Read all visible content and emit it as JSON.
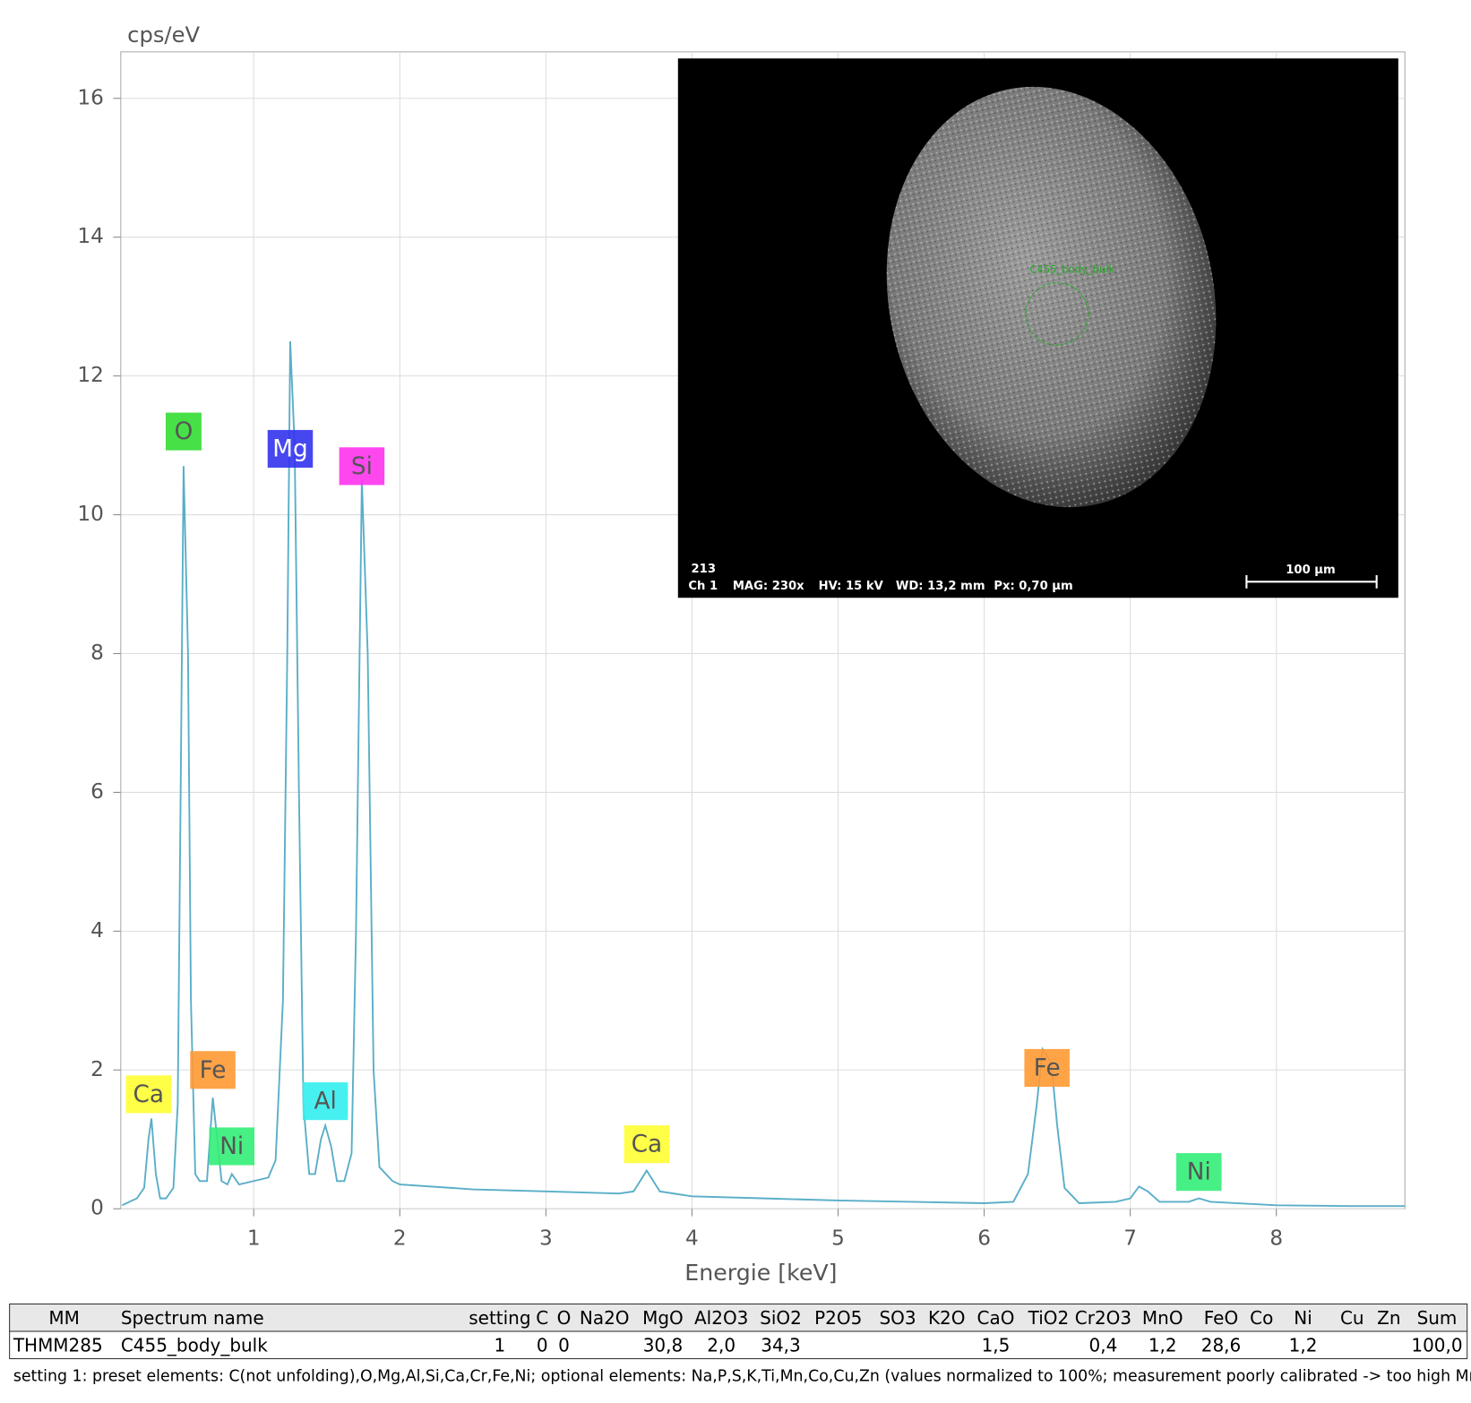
{
  "chart_data": {
    "type": "line",
    "ylabel": "cps/eV",
    "xlabel": "Energie [keV]",
    "x": [
      0.1,
      0.15,
      0.2,
      0.25,
      0.28,
      0.3,
      0.33,
      0.36,
      0.4,
      0.45,
      0.48,
      0.5,
      0.52,
      0.55,
      0.57,
      0.6,
      0.63,
      0.68,
      0.7,
      0.72,
      0.75,
      0.78,
      0.82,
      0.85,
      0.9,
      1.0,
      1.1,
      1.15,
      1.2,
      1.23,
      1.25,
      1.28,
      1.31,
      1.34,
      1.38,
      1.42,
      1.46,
      1.49,
      1.53,
      1.57,
      1.62,
      1.67,
      1.7,
      1.74,
      1.78,
      1.82,
      1.86,
      1.95,
      2.0,
      2.5,
      3.0,
      3.5,
      3.6,
      3.69,
      3.78,
      4.0,
      4.5,
      5.0,
      5.5,
      6.0,
      6.2,
      6.3,
      6.36,
      6.4,
      6.46,
      6.5,
      6.55,
      6.65,
      6.9,
      7.0,
      7.06,
      7.12,
      7.2,
      7.4,
      7.47,
      7.55,
      8.0,
      8.5,
      8.88
    ],
    "values": [
      0.05,
      0.1,
      0.15,
      0.3,
      1.0,
      1.3,
      0.5,
      0.15,
      0.15,
      0.3,
      1.5,
      6,
      10.7,
      8,
      3,
      0.5,
      0.4,
      0.4,
      1.0,
      1.6,
      1.0,
      0.4,
      0.35,
      0.5,
      0.35,
      0.4,
      0.45,
      0.7,
      3,
      8,
      12.5,
      11,
      6,
      1.5,
      0.5,
      0.5,
      1.0,
      1.2,
      0.9,
      0.4,
      0.4,
      0.8,
      4,
      10.5,
      8,
      2,
      0.6,
      0.4,
      0.35,
      0.28,
      0.25,
      0.22,
      0.25,
      0.55,
      0.25,
      0.18,
      0.15,
      0.12,
      0.1,
      0.08,
      0.1,
      0.5,
      1.5,
      2.3,
      2.1,
      1.2,
      0.3,
      0.08,
      0.1,
      0.15,
      0.32,
      0.25,
      0.1,
      0.1,
      0.15,
      0.1,
      0.05,
      0.04,
      0.04
    ],
    "color": "#5aaec8",
    "xlim": [
      0.09,
      8.88
    ],
    "ylim": [
      0,
      16.67
    ],
    "xticks": [
      1,
      2,
      3,
      4,
      5,
      6,
      7,
      8
    ],
    "yticks": [
      0,
      2,
      4,
      6,
      8,
      10,
      12,
      14,
      16
    ],
    "grid": true,
    "annotations": [
      {
        "text": "Ca",
        "x": 0.28,
        "y": 1.65,
        "color": "#ffff33"
      },
      {
        "text": "O",
        "x": 0.52,
        "y": 11.2,
        "color": "#33dd33"
      },
      {
        "text": "Fe",
        "x": 0.72,
        "y": 2.0,
        "color": "#ff9933"
      },
      {
        "text": "Ni",
        "x": 0.85,
        "y": 0.9,
        "color": "#33ee77"
      },
      {
        "text": "Mg",
        "x": 1.25,
        "y": 10.95,
        "color": "#3333ee"
      },
      {
        "text": "Al",
        "x": 1.49,
        "y": 1.55,
        "color": "#33eeee"
      },
      {
        "text": "Si",
        "x": 1.74,
        "y": 10.7,
        "color": "#ff33ee"
      },
      {
        "text": "Ca",
        "x": 3.69,
        "y": 0.93,
        "color": "#ffff33"
      },
      {
        "text": "Fe",
        "x": 6.43,
        "y": 2.03,
        "color": "#ff9933"
      },
      {
        "text": "Ni",
        "x": 7.47,
        "y": 0.53,
        "color": "#33ee77"
      }
    ]
  },
  "inset": {
    "label": "C455_body_bulk",
    "id": "213",
    "channel": "Ch 1",
    "mag": "MAG: 230x",
    "hv": "HV: 15 kV",
    "wd": "WD: 13,2 mm",
    "px": "Px: 0,70 µm",
    "scale": "100 µm"
  },
  "table": {
    "header": [
      "MM",
      "Spectrum name",
      "setting",
      "C",
      "O",
      "Na2O",
      "MgO",
      "Al2O3",
      "SiO2",
      "P2O5",
      "SO3",
      "K2O",
      "CaO",
      "TiO2",
      "Cr2O3",
      "MnO",
      "FeO",
      "Co",
      "Ni",
      "Cu",
      "Zn",
      "Sum"
    ],
    "rows": [
      [
        "THMM285",
        "C455_body_bulk",
        "1",
        "0",
        "0",
        null,
        "30,8",
        "2,0",
        "34,3",
        null,
        null,
        null,
        "1,5",
        null,
        "0,4",
        "1,2",
        "28,6",
        null,
        "1,2",
        null,
        null,
        "100,0"
      ]
    ]
  },
  "footnote": "setting 1: preset elements: C(not unfolding),O,Mg,Al,Si,Ca,Cr,Fe,Ni; optional elements: Na,P,S,K,Ti,Mn,Co,Cu,Zn (values normalized to 100%; measurement poorly calibrated -> too high MnO)"
}
